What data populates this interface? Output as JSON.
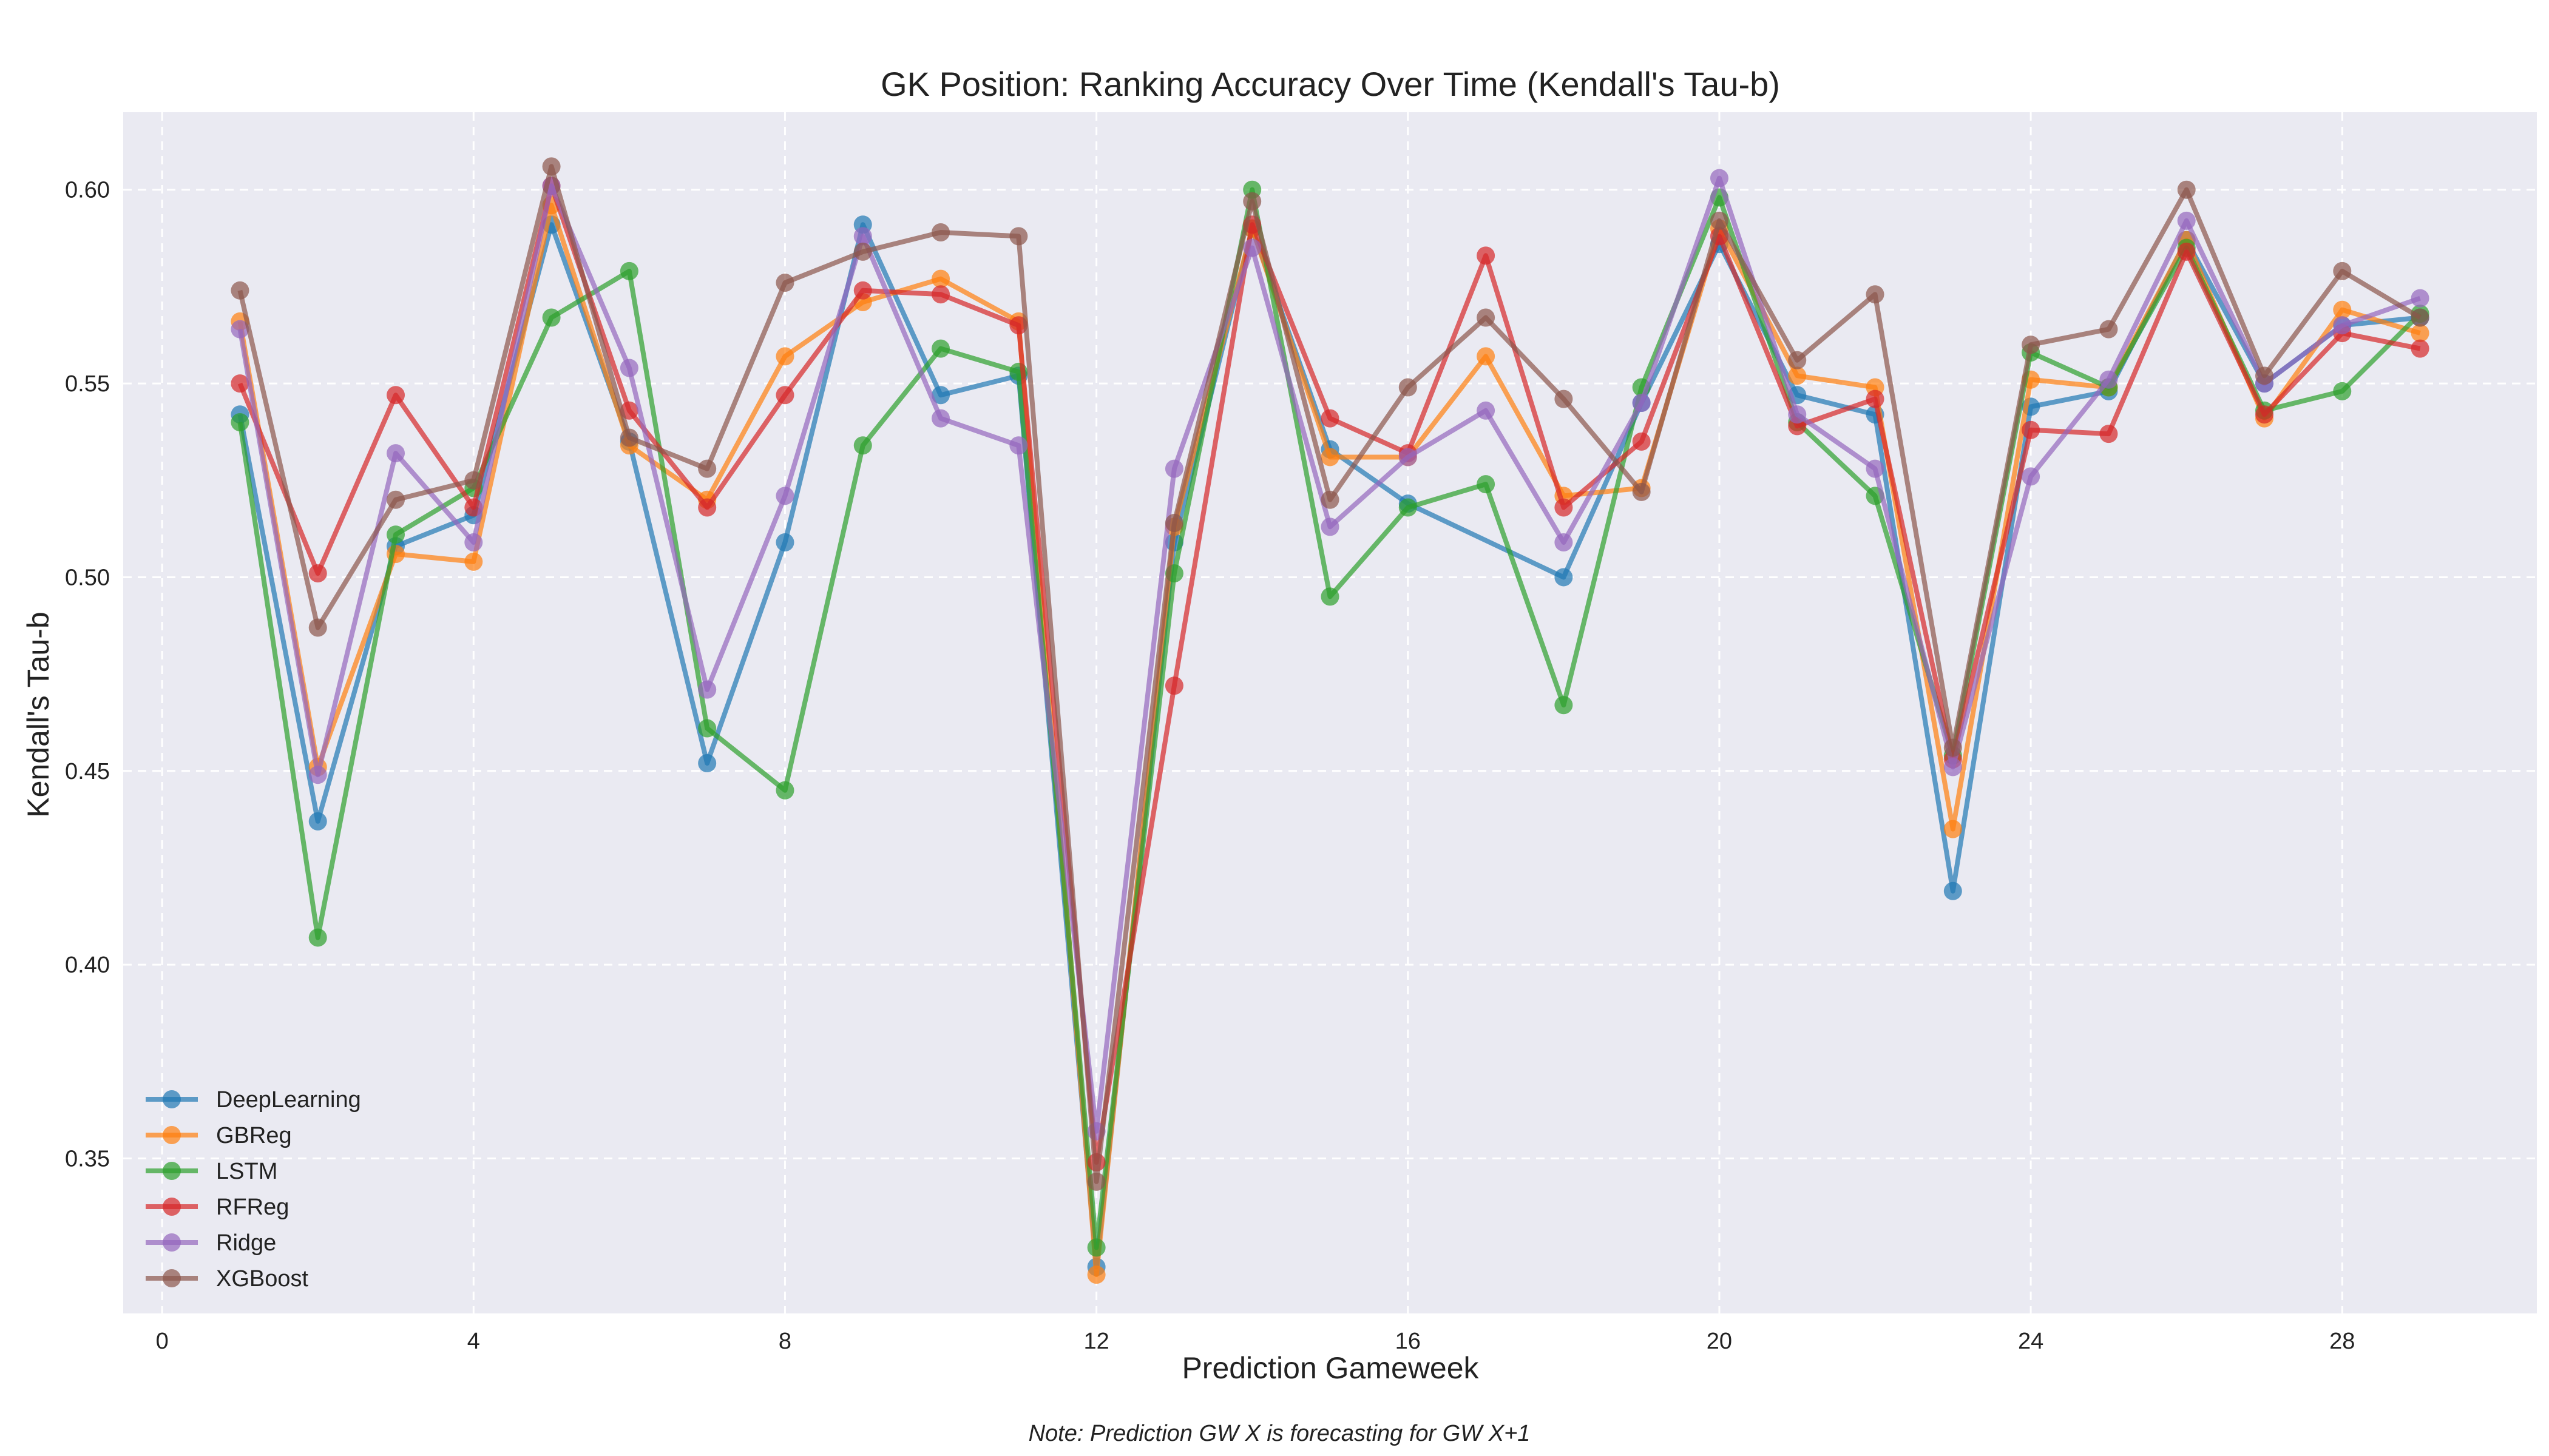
{
  "chart_data": {
    "type": "line",
    "title": "GK Position: Ranking Accuracy Over Time (Kendall's Tau-b)",
    "xlabel": "Prediction Gameweek",
    "ylabel": "Kendall's Tau-b",
    "note": "Note: Prediction GW X is forecasting for GW X+1",
    "xlim": [
      -0.5,
      30.5
    ],
    "ylim": [
      0.31,
      0.62
    ],
    "xticks": [
      0,
      4,
      8,
      12,
      16,
      20,
      24,
      28
    ],
    "yticks": [
      0.35,
      0.4,
      0.45,
      0.5,
      0.55,
      0.6
    ],
    "grid": true,
    "legend_position": "lower-left",
    "series": [
      {
        "name": "DeepLearning",
        "color": "#1f77b4",
        "x": [
          1,
          2,
          3,
          4,
          5,
          6,
          7,
          8,
          9,
          10,
          11,
          12,
          13,
          14,
          15,
          16,
          18,
          19,
          20,
          21,
          22,
          23,
          24,
          25,
          26,
          27,
          28,
          29
        ],
        "y": [
          0.542,
          0.437,
          0.508,
          0.516,
          0.591,
          0.535,
          0.452,
          0.509,
          0.591,
          0.547,
          0.552,
          0.322,
          0.509,
          0.59,
          0.533,
          0.519,
          0.5,
          0.545,
          0.586,
          0.547,
          0.542,
          0.419,
          0.544,
          0.548,
          0.587,
          0.55,
          0.565,
          0.567
        ]
      },
      {
        "name": "GBReg",
        "color": "#ff7f0e",
        "x": [
          1,
          2,
          3,
          4,
          5,
          6,
          7,
          8,
          9,
          10,
          11,
          12,
          13,
          14,
          15,
          16,
          17,
          18,
          19,
          20,
          21,
          22,
          23,
          24,
          25,
          26,
          27,
          28,
          29
        ],
        "y": [
          0.566,
          0.451,
          0.506,
          0.504,
          0.596,
          0.534,
          0.52,
          0.557,
          0.571,
          0.577,
          0.566,
          0.32,
          0.513,
          0.59,
          0.531,
          0.531,
          0.557,
          0.521,
          0.523,
          0.59,
          0.552,
          0.549,
          0.435,
          0.551,
          0.549,
          0.587,
          0.541,
          0.569,
          0.563
        ]
      },
      {
        "name": "LSTM",
        "color": "#2ca02c",
        "x": [
          1,
          2,
          3,
          4,
          5,
          6,
          7,
          8,
          9,
          10,
          11,
          12,
          13,
          14,
          15,
          16,
          17,
          18,
          19,
          20,
          21,
          22,
          23,
          24,
          25,
          26,
          27,
          28,
          29
        ],
        "y": [
          0.54,
          0.407,
          0.511,
          0.523,
          0.567,
          0.579,
          0.461,
          0.445,
          0.534,
          0.559,
          0.553,
          0.327,
          0.501,
          0.6,
          0.495,
          0.518,
          0.524,
          0.467,
          0.549,
          0.598,
          0.54,
          0.521,
          0.454,
          0.558,
          0.549,
          0.585,
          0.543,
          0.548,
          0.568
        ]
      },
      {
        "name": "RFReg",
        "color": "#d62728",
        "x": [
          1,
          2,
          3,
          4,
          5,
          6,
          7,
          8,
          9,
          10,
          11,
          12,
          13,
          14,
          15,
          16,
          17,
          18,
          19,
          20,
          21,
          22,
          23,
          24,
          25,
          26,
          27,
          28,
          29
        ],
        "y": [
          0.55,
          0.501,
          0.547,
          0.518,
          0.601,
          0.543,
          0.518,
          0.547,
          0.574,
          0.573,
          0.565,
          0.349,
          0.472,
          0.591,
          0.541,
          0.532,
          0.583,
          0.518,
          0.535,
          0.588,
          0.539,
          0.546,
          0.453,
          0.538,
          0.537,
          0.584,
          0.542,
          0.563,
          0.559
        ]
      },
      {
        "name": "Ridge",
        "color": "#9467bd",
        "x": [
          1,
          2,
          3,
          4,
          5,
          6,
          7,
          8,
          9,
          10,
          11,
          12,
          13,
          14,
          15,
          16,
          17,
          18,
          19,
          20,
          21,
          22,
          23,
          24,
          25,
          26,
          27,
          28,
          29
        ],
        "y": [
          0.564,
          0.449,
          0.532,
          0.509,
          0.601,
          0.554,
          0.471,
          0.521,
          0.588,
          0.541,
          0.534,
          0.357,
          0.528,
          0.585,
          0.513,
          0.531,
          0.543,
          0.509,
          0.545,
          0.603,
          0.542,
          0.528,
          0.451,
          0.526,
          0.551,
          0.592,
          0.55,
          0.565,
          0.572
        ]
      },
      {
        "name": "XGBoost",
        "color": "#8c564b",
        "x": [
          1,
          2,
          3,
          4,
          5,
          6,
          7,
          8,
          9,
          10,
          11,
          12,
          13,
          14,
          15,
          16,
          17,
          18,
          19,
          20,
          21,
          22,
          23,
          24,
          25,
          26,
          27,
          28,
          29
        ],
        "y": [
          0.574,
          0.487,
          0.52,
          0.525,
          0.606,
          0.536,
          0.528,
          0.576,
          0.584,
          0.589,
          0.588,
          0.344,
          0.514,
          0.597,
          0.52,
          0.549,
          0.567,
          0.546,
          0.522,
          0.592,
          0.556,
          0.573,
          0.456,
          0.56,
          0.564,
          0.6,
          0.552,
          0.579,
          0.567
        ]
      }
    ]
  }
}
